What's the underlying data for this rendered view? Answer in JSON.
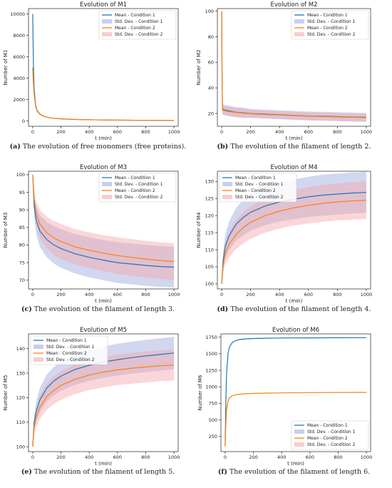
{
  "chart_data": [
    {
      "type": "line",
      "title": "Evolution of M1",
      "xlabel": "t (min)",
      "ylabel": "Number of M1",
      "xlim": [
        -30,
        1030
      ],
      "ylim": [
        -500,
        10500
      ],
      "xticks": [
        0,
        200,
        400,
        600,
        800,
        1000
      ],
      "yticks": [
        0,
        2000,
        4000,
        6000,
        8000,
        10000
      ],
      "grid": false,
      "legend_placement": "top-right",
      "caption_tag": "(a)",
      "caption": "The evolution of free monomers (free proteins).",
      "series": [
        {
          "name": "Mean - Condition 1",
          "color": "#1f77b4",
          "x": [
            0,
            5,
            10,
            20,
            30,
            50,
            75,
            100,
            150,
            200,
            300,
            400,
            500,
            600,
            800,
            1000
          ],
          "y": [
            10000,
            5200,
            3000,
            1500,
            1000,
            650,
            450,
            350,
            250,
            200,
            140,
            110,
            90,
            75,
            55,
            40
          ]
        },
        {
          "name": "Std. Dev. - Condition 1",
          "color": "#9aa6dc",
          "band_of": 0,
          "width": [
            0,
            150,
            120,
            80,
            60,
            40,
            30,
            25,
            20,
            15,
            12,
            10,
            10,
            10,
            8,
            8
          ]
        },
        {
          "name": "Mean - Condition 2",
          "color": "#ff7f0e",
          "x": [
            0,
            5,
            10,
            20,
            30,
            50,
            75,
            100,
            150,
            200,
            300,
            400,
            500,
            600,
            800,
            1000
          ],
          "y": [
            5000,
            3500,
            2500,
            1400,
            950,
            620,
            440,
            340,
            245,
            195,
            135,
            108,
            88,
            73,
            54,
            40
          ]
        },
        {
          "name": "Std. Dev. - Condition 2",
          "color": "#f4a3a8",
          "band_of": 2,
          "width": [
            0,
            120,
            100,
            70,
            55,
            38,
            28,
            24,
            18,
            14,
            11,
            10,
            9,
            9,
            8,
            8
          ]
        }
      ]
    },
    {
      "type": "line",
      "title": "Evolution of M2",
      "xlabel": "t (min)",
      "ylabel": "Number of M2",
      "xlim": [
        -30,
        1030
      ],
      "ylim": [
        10,
        102
      ],
      "xticks": [
        0,
        200,
        400,
        600,
        800,
        1000
      ],
      "yticks": [
        20,
        40,
        60,
        80,
        100
      ],
      "grid": false,
      "legend_placement": "top-right",
      "caption_tag": "(b)",
      "caption": "The evolution of the filament of length 2.",
      "series": [
        {
          "name": "Mean - Condition 1",
          "color": "#1f77b4",
          "x": [
            0,
            2,
            5,
            10,
            50,
            100,
            150,
            200,
            300,
            400,
            500,
            600,
            700,
            800,
            900,
            1000
          ],
          "y": [
            100,
            60,
            24,
            23,
            22,
            21,
            20.5,
            20,
            19.5,
            19,
            18.5,
            18,
            17.8,
            17.5,
            17.2,
            17
          ]
        },
        {
          "name": "Std. Dev. - Condition 1",
          "color": "#9aa6dc",
          "band_of": 0,
          "width": [
            0,
            4,
            4,
            4,
            4,
            4,
            4,
            3.5,
            3.5,
            3.5,
            3.5,
            3.5,
            3.5,
            3.5,
            3.5,
            3.5
          ]
        },
        {
          "name": "Mean - Condition 2",
          "color": "#ff7f0e",
          "x": [
            0,
            2,
            5,
            10,
            50,
            100,
            150,
            200,
            300,
            400,
            500,
            600,
            700,
            800,
            900,
            1000
          ],
          "y": [
            100,
            55,
            23,
            22.5,
            21.5,
            20.8,
            20.2,
            19.8,
            19.2,
            18.8,
            18.3,
            17.9,
            17.6,
            17.3,
            17,
            16.8
          ]
        },
        {
          "name": "Std. Dev. - Condition 2",
          "color": "#f4a3a8",
          "band_of": 2,
          "width": [
            0,
            3.5,
            3.5,
            3.5,
            3.5,
            3.5,
            3.5,
            3,
            3,
            3,
            3,
            3,
            3,
            3,
            3,
            3
          ]
        }
      ]
    },
    {
      "type": "line",
      "title": "Evolution of M3",
      "xlabel": "t (min)",
      "ylabel": "Number of M3",
      "xlim": [
        -30,
        1030
      ],
      "ylim": [
        67.5,
        101
      ],
      "xticks": [
        0,
        200,
        400,
        600,
        800,
        1000
      ],
      "yticks": [
        70,
        75,
        80,
        85,
        90,
        95,
        100
      ],
      "grid": false,
      "legend_placement": "top-right",
      "caption_tag": "(c)",
      "caption": "The evolution of the filament of length 3.",
      "series": [
        {
          "name": "Mean - Condition 1",
          "color": "#1f77b4",
          "x": [
            0,
            10,
            25,
            50,
            100,
            150,
            200,
            300,
            400,
            500,
            600,
            700,
            800,
            900,
            1000
          ],
          "y": [
            100,
            91,
            87,
            84,
            81.5,
            80,
            79,
            77.5,
            76.5,
            75.7,
            75,
            74.6,
            74.2,
            73.9,
            73.7
          ]
        },
        {
          "name": "Std. Dev. - Condition 1",
          "color": "#9aa6dc",
          "band_of": 0,
          "width": [
            0,
            3,
            4,
            4.5,
            5,
            5.3,
            5.5,
            5.6,
            5.7,
            5.7,
            5.8,
            5.8,
            5.8,
            5.8,
            5.8
          ]
        },
        {
          "name": "Mean - Condition 2",
          "color": "#ff7f0e",
          "x": [
            0,
            10,
            25,
            50,
            100,
            150,
            200,
            300,
            400,
            500,
            600,
            700,
            800,
            900,
            1000
          ],
          "y": [
            100,
            93,
            89,
            86,
            83.5,
            82,
            81,
            79.5,
            78.5,
            77.7,
            77,
            76.5,
            76,
            75.6,
            75.3
          ]
        },
        {
          "name": "Std. Dev. - Condition 2",
          "color": "#f4a3a8",
          "band_of": 2,
          "width": [
            0,
            2.5,
            3.5,
            4,
            4.5,
            4.8,
            5,
            5,
            5.1,
            5.1,
            5.2,
            5.2,
            5.2,
            5.2,
            5.2
          ]
        }
      ]
    },
    {
      "type": "line",
      "title": "Evolution of M4",
      "xlabel": "t (min)",
      "ylabel": "Number of M4",
      "xlim": [
        -30,
        1030
      ],
      "ylim": [
        98.5,
        133
      ],
      "xticks": [
        0,
        200,
        400,
        600,
        800,
        1000
      ],
      "yticks": [
        100,
        105,
        110,
        115,
        120,
        125,
        130
      ],
      "grid": false,
      "legend_placement": "top-left",
      "caption_tag": "(d)",
      "caption": "The evolution of the filament of length 4.",
      "series": [
        {
          "name": "Mean - Condition 1",
          "color": "#1f77b4",
          "x": [
            0,
            10,
            25,
            50,
            100,
            150,
            200,
            300,
            400,
            500,
            600,
            700,
            800,
            900,
            1000
          ],
          "y": [
            100,
            107,
            111,
            114,
            117.5,
            119.5,
            121,
            122.8,
            124,
            124.8,
            125.5,
            126,
            126.3,
            126.6,
            126.8
          ]
        },
        {
          "name": "Std. Dev. - Condition 1",
          "color": "#9aa6dc",
          "band_of": 0,
          "width": [
            0,
            2.5,
            3.5,
            4.2,
            4.8,
            5.2,
            5.4,
            5.6,
            5.7,
            5.8,
            5.9,
            6,
            6,
            6,
            6
          ]
        },
        {
          "name": "Mean - Condition 2",
          "color": "#ff7f0e",
          "x": [
            0,
            10,
            25,
            50,
            100,
            150,
            200,
            300,
            400,
            500,
            600,
            700,
            800,
            900,
            1000
          ],
          "y": [
            100,
            105.5,
            109,
            111.5,
            114.5,
            116.5,
            118,
            120,
            121.3,
            122.3,
            123,
            123.6,
            124,
            124.3,
            124.5
          ]
        },
        {
          "name": "Std. Dev. - Condition 2",
          "color": "#f4a3a8",
          "band_of": 2,
          "width": [
            0,
            2.2,
            3.2,
            3.8,
            4.3,
            4.6,
            4.8,
            5,
            5.1,
            5.2,
            5.3,
            5.4,
            5.4,
            5.5,
            5.5
          ]
        }
      ]
    },
    {
      "type": "line",
      "title": "Evolution of M5",
      "xlabel": "t (min)",
      "ylabel": "Number of M5",
      "xlim": [
        -30,
        1030
      ],
      "ylim": [
        98,
        146
      ],
      "xticks": [
        0,
        200,
        400,
        600,
        800,
        1000
      ],
      "yticks": [
        100,
        110,
        120,
        130,
        140
      ],
      "grid": false,
      "legend_placement": "top-left",
      "caption_tag": "(e)",
      "caption": "The evolution of the filament of length 5.",
      "series": [
        {
          "name": "Mean - Condition 1",
          "color": "#1f77b4",
          "x": [
            0,
            10,
            25,
            50,
            100,
            150,
            200,
            300,
            400,
            500,
            600,
            700,
            800,
            900,
            1000
          ],
          "y": [
            100,
            110,
            114.5,
            119,
            124,
            126.8,
            128.8,
            131.5,
            133.2,
            134.5,
            135.5,
            136.3,
            137,
            137.6,
            138.2
          ]
        },
        {
          "name": "Std. Dev. - Condition 1",
          "color": "#9aa6dc",
          "band_of": 0,
          "width": [
            0,
            3,
            4,
            5,
            5.5,
            5.8,
            6,
            6.2,
            6.3,
            6.4,
            6.5,
            6.5,
            6.6,
            6.6,
            6.6
          ]
        },
        {
          "name": "Mean - Condition 2",
          "color": "#ff7f0e",
          "x": [
            0,
            10,
            25,
            50,
            100,
            150,
            200,
            300,
            400,
            500,
            600,
            700,
            800,
            900,
            1000
          ],
          "y": [
            100,
            108,
            112,
            116,
            120.5,
            123,
            125,
            127.5,
            129.2,
            130.4,
            131.3,
            132,
            132.5,
            133,
            133.3
          ]
        },
        {
          "name": "Std. Dev. - Condition 2",
          "color": "#f4a3a8",
          "band_of": 2,
          "width": [
            0,
            3,
            4,
            4.8,
            5.3,
            5.6,
            5.8,
            6,
            6.1,
            6.2,
            6.2,
            6.3,
            6.3,
            6.3,
            6.3
          ]
        }
      ]
    },
    {
      "type": "line",
      "title": "Evolution of M6",
      "xlabel": "t (min)",
      "ylabel": "Number of M6",
      "xlim": [
        -30,
        1030
      ],
      "ylim": [
        20,
        1800
      ],
      "xticks": [
        0,
        200,
        400,
        600,
        800,
        1000
      ],
      "yticks": [
        250,
        500,
        750,
        1000,
        1250,
        1500,
        1750
      ],
      "grid": false,
      "legend_placement": "bottom-right",
      "caption_tag": "(f)",
      "caption": "The evolution of the filament of length 6.",
      "series": [
        {
          "name": "Mean - Condition 1",
          "color": "#1f77b4",
          "x": [
            0,
            5,
            10,
            20,
            30,
            50,
            75,
            100,
            150,
            200,
            300,
            400,
            600,
            800,
            1000
          ],
          "y": [
            100,
            800,
            1200,
            1500,
            1600,
            1670,
            1700,
            1715,
            1725,
            1730,
            1735,
            1738,
            1740,
            1742,
            1743
          ]
        },
        {
          "name": "Std. Dev. - Condition 1",
          "color": "#9aa6dc",
          "band_of": 0,
          "width": [
            0,
            10,
            8,
            6,
            5,
            5,
            4,
            4,
            4,
            4,
            4,
            4,
            4,
            4,
            4
          ]
        },
        {
          "name": "Mean - Condition 2",
          "color": "#ff7f0e",
          "x": [
            0,
            5,
            10,
            20,
            30,
            50,
            75,
            100,
            150,
            200,
            300,
            400,
            600,
            800,
            1000
          ],
          "y": [
            100,
            450,
            650,
            780,
            830,
            865,
            880,
            888,
            895,
            900,
            905,
            908,
            912,
            914,
            915
          ]
        },
        {
          "name": "Std. Dev. - Condition 2",
          "color": "#f4a3a8",
          "band_of": 2,
          "width": [
            0,
            8,
            6,
            5,
            4,
            4,
            3,
            3,
            3,
            3,
            3,
            3,
            3,
            3,
            3
          ]
        }
      ]
    }
  ]
}
